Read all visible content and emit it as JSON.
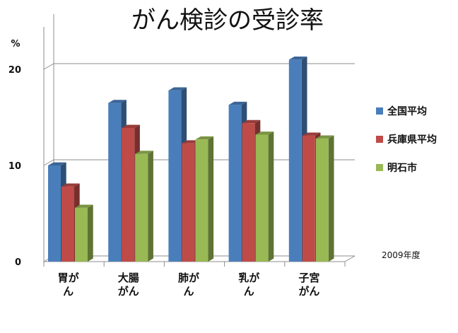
{
  "chart_data": {
    "type": "bar",
    "title": "がん検診の受診率",
    "ylabel": "%",
    "ylim": [
      0,
      25
    ],
    "yticks": [
      0,
      10,
      20
    ],
    "grid": true,
    "legend_position": "right",
    "note": "2009年度",
    "categories": [
      "胃がん",
      "大腸がん",
      "肺がん",
      "乳がん",
      "子宮がん"
    ],
    "series": [
      {
        "name": "全国平均",
        "color": "#4a7ebb",
        "values": [
          10.0,
          16.5,
          17.8,
          16.3,
          21.0
        ]
      },
      {
        "name": "兵庫県平均",
        "color": "#be4b48",
        "values": [
          7.8,
          13.9,
          12.3,
          14.4,
          13.1
        ]
      },
      {
        "name": "明石市",
        "color": "#98b954",
        "values": [
          5.6,
          11.2,
          12.7,
          13.2,
          12.8
        ]
      }
    ]
  }
}
